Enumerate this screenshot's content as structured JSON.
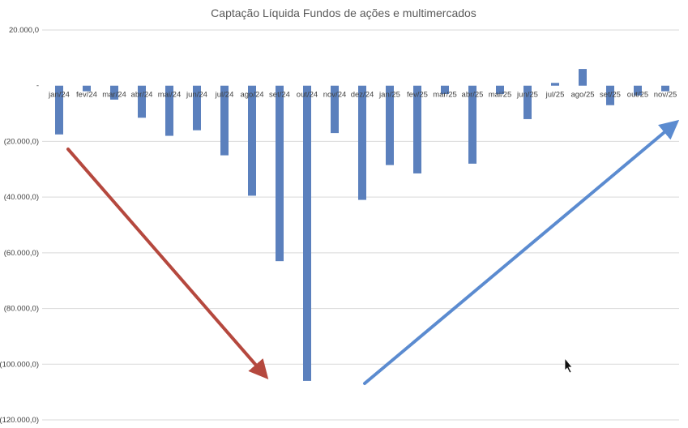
{
  "chart_data": {
    "type": "bar",
    "title": "Captação Líquida Fundos de ações e multimercados",
    "xlabel": "",
    "ylabel": "",
    "ylim": [
      -120000,
      20000
    ],
    "yticks": [
      20000,
      0,
      -20000,
      -40000,
      -60000,
      -80000,
      -100000,
      -120000
    ],
    "ytick_labels": [
      "20.000,0",
      "-",
      "(20.000,0)",
      "(40.000,0)",
      "(60.000,0)",
      "(80.000,0)",
      "(100.000,0)",
      "(120.000,0)"
    ],
    "grid": true,
    "legend": "none",
    "bar_color": "#5b80bd",
    "categories": [
      "jan/24",
      "fev/24",
      "mar/24",
      "abr/24",
      "mai/24",
      "jun/24",
      "jul/24",
      "ago/24",
      "set/24",
      "out/24",
      "nov/24",
      "dez/24",
      "jan/25",
      "fev/25",
      "mar/25",
      "abr/25",
      "mai/25",
      "jun/25",
      "jul/25",
      "ago/25",
      "set/25",
      "out/25",
      "nov/25"
    ],
    "values": [
      -17500,
      -2000,
      -5000,
      -11500,
      -18000,
      -16000,
      -25000,
      -39500,
      -63000,
      -106000,
      -17000,
      -41000,
      -28500,
      -31500,
      -3000,
      -28000,
      -3000,
      -12000,
      1000,
      6000,
      -7000,
      -3500,
      -2000
    ],
    "annotations": [
      {
        "type": "arrow",
        "color": "#b5483e",
        "direction": "down-right"
      },
      {
        "type": "arrow",
        "color": "#5b8bd0",
        "direction": "up-right"
      }
    ]
  }
}
